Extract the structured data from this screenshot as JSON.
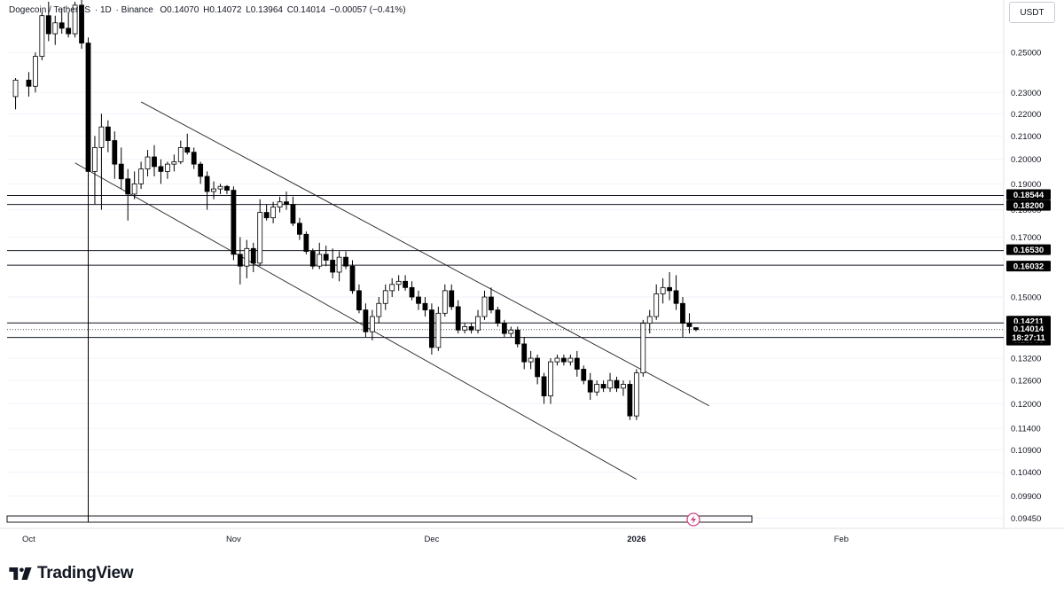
{
  "legend": {
    "symbol": "Dogecoin / TetherUS",
    "interval": "1D",
    "exchange": "Binance",
    "open": "O0.14070",
    "high": "H0.14072",
    "low": "L0.13964",
    "close": "C0.14014",
    "change": "−0.00057 (−0.41%)"
  },
  "currency": "USDT",
  "brand": "TradingView",
  "colors": {
    "up": "#ffffff",
    "down": "#000000",
    "line": "#131722",
    "grid": "#f0f3fa"
  },
  "chart_data": {
    "type": "candlestick",
    "x_ticks": [
      "Oct",
      "Nov",
      "Dec",
      "2026",
      "Feb"
    ],
    "y_ticks": [
      "0.25000",
      "0.23000",
      "0.22000",
      "0.21000",
      "0.20000",
      "0.19000",
      "0.18000",
      "0.17000",
      "0.15000",
      "0.13200",
      "0.12600",
      "0.12000",
      "0.11400",
      "0.10900",
      "0.10400",
      "0.09900",
      "0.09450"
    ],
    "scale": "log",
    "ylim": [
      0.0925,
      0.279
    ],
    "price_levels": [
      "0.18544",
      "0.18200",
      "0.16530",
      "0.16032",
      "0.14211",
      "0.13785"
    ],
    "last_price": "0.14014",
    "countdown": "18:27:11",
    "trend_channel": {
      "upper": [
        [
          "Oct 18",
          0.2255
        ],
        [
          "Jan 12",
          0.1195
        ]
      ],
      "lower": [
        [
          "Oct 8",
          0.1985
        ],
        [
          "Jan 1",
          0.1025
        ]
      ]
    },
    "candles": [
      {
        "date": "Sep 30",
        "o": 0.228,
        "h": 0.237,
        "l": 0.222,
        "c": 0.236
      },
      {
        "date": "Oct 1",
        "o": 0.236,
        "h": 0.24,
        "l": 0.228,
        "c": 0.233
      },
      {
        "date": "Oct 2",
        "o": 0.233,
        "h": 0.25,
        "l": 0.23,
        "c": 0.248
      },
      {
        "date": "Oct 3",
        "o": 0.248,
        "h": 0.272,
        "l": 0.246,
        "c": 0.27
      },
      {
        "date": "Oct 4",
        "o": 0.27,
        "h": 0.278,
        "l": 0.256,
        "c": 0.26
      },
      {
        "date": "Oct 5",
        "o": 0.26,
        "h": 0.27,
        "l": 0.254,
        "c": 0.266
      },
      {
        "date": "Oct 6",
        "o": 0.266,
        "h": 0.274,
        "l": 0.26,
        "c": 0.263
      },
      {
        "date": "Oct 7",
        "o": 0.263,
        "h": 0.272,
        "l": 0.258,
        "c": 0.26
      },
      {
        "date": "Oct 8",
        "o": 0.26,
        "h": 0.278,
        "l": 0.258,
        "c": 0.276
      },
      {
        "date": "Oct 9",
        "o": 0.276,
        "h": 0.279,
        "l": 0.252,
        "c": 0.255
      },
      {
        "date": "Oct 10",
        "o": 0.255,
        "h": 0.258,
        "l": 0.185,
        "c": 0.195
      },
      {
        "date": "Oct 11",
        "o": 0.195,
        "h": 0.21,
        "l": 0.182,
        "c": 0.205
      },
      {
        "date": "Oct 12",
        "o": 0.205,
        "h": 0.22,
        "l": 0.18,
        "c": 0.214
      },
      {
        "date": "Oct 13",
        "o": 0.214,
        "h": 0.217,
        "l": 0.203,
        "c": 0.208
      },
      {
        "date": "Oct 14",
        "o": 0.208,
        "h": 0.212,
        "l": 0.192,
        "c": 0.198
      },
      {
        "date": "Oct 15",
        "o": 0.198,
        "h": 0.205,
        "l": 0.188,
        "c": 0.192
      },
      {
        "date": "Oct 16",
        "o": 0.192,
        "h": 0.196,
        "l": 0.176,
        "c": 0.186
      },
      {
        "date": "Oct 17",
        "o": 0.186,
        "h": 0.195,
        "l": 0.184,
        "c": 0.19
      },
      {
        "date": "Oct 18",
        "o": 0.19,
        "h": 0.199,
        "l": 0.188,
        "c": 0.196
      },
      {
        "date": "Oct 19",
        "o": 0.196,
        "h": 0.204,
        "l": 0.193,
        "c": 0.201
      },
      {
        "date": "Oct 20",
        "o": 0.201,
        "h": 0.206,
        "l": 0.193,
        "c": 0.197
      },
      {
        "date": "Oct 21",
        "o": 0.197,
        "h": 0.2,
        "l": 0.19,
        "c": 0.195
      },
      {
        "date": "Oct 22",
        "o": 0.195,
        "h": 0.199,
        "l": 0.192,
        "c": 0.198
      },
      {
        "date": "Oct 23",
        "o": 0.198,
        "h": 0.202,
        "l": 0.195,
        "c": 0.199
      },
      {
        "date": "Oct 24",
        "o": 0.199,
        "h": 0.208,
        "l": 0.198,
        "c": 0.205
      },
      {
        "date": "Oct 25",
        "o": 0.205,
        "h": 0.211,
        "l": 0.202,
        "c": 0.203
      },
      {
        "date": "Oct 26",
        "o": 0.203,
        "h": 0.205,
        "l": 0.196,
        "c": 0.198
      },
      {
        "date": "Oct 27",
        "o": 0.198,
        "h": 0.199,
        "l": 0.19,
        "c": 0.193
      },
      {
        "date": "Oct 28",
        "o": 0.193,
        "h": 0.195,
        "l": 0.18,
        "c": 0.187
      },
      {
        "date": "Oct 29",
        "o": 0.187,
        "h": 0.191,
        "l": 0.184,
        "c": 0.188
      },
      {
        "date": "Oct 30",
        "o": 0.188,
        "h": 0.19,
        "l": 0.186,
        "c": 0.189
      },
      {
        "date": "Oct 31",
        "o": 0.189,
        "h": 0.1895,
        "l": 0.186,
        "c": 0.1875
      },
      {
        "date": "Nov 1",
        "o": 0.1875,
        "h": 0.189,
        "l": 0.162,
        "c": 0.164
      },
      {
        "date": "Nov 2",
        "o": 0.164,
        "h": 0.17,
        "l": 0.154,
        "c": 0.16
      },
      {
        "date": "Nov 3",
        "o": 0.16,
        "h": 0.169,
        "l": 0.156,
        "c": 0.166
      },
      {
        "date": "Nov 4",
        "o": 0.166,
        "h": 0.168,
        "l": 0.158,
        "c": 0.161
      },
      {
        "date": "Nov 5",
        "o": 0.161,
        "h": 0.184,
        "l": 0.16,
        "c": 0.179
      },
      {
        "date": "Nov 6",
        "o": 0.179,
        "h": 0.182,
        "l": 0.176,
        "c": 0.177
      },
      {
        "date": "Nov 7",
        "o": 0.177,
        "h": 0.183,
        "l": 0.175,
        "c": 0.181
      },
      {
        "date": "Nov 8",
        "o": 0.181,
        "h": 0.185,
        "l": 0.179,
        "c": 0.183
      },
      {
        "date": "Nov 9",
        "o": 0.183,
        "h": 0.187,
        "l": 0.18,
        "c": 0.182
      },
      {
        "date": "Nov 10",
        "o": 0.182,
        "h": 0.185,
        "l": 0.174,
        "c": 0.175
      },
      {
        "date": "Nov 11",
        "o": 0.175,
        "h": 0.177,
        "l": 0.169,
        "c": 0.171
      },
      {
        "date": "Nov 12",
        "o": 0.171,
        "h": 0.172,
        "l": 0.164,
        "c": 0.165
      },
      {
        "date": "Nov 13",
        "o": 0.165,
        "h": 0.166,
        "l": 0.159,
        "c": 0.16
      },
      {
        "date": "Nov 14",
        "o": 0.16,
        "h": 0.168,
        "l": 0.159,
        "c": 0.164
      },
      {
        "date": "Nov 15",
        "o": 0.164,
        "h": 0.167,
        "l": 0.16,
        "c": 0.162
      },
      {
        "date": "Nov 16",
        "o": 0.162,
        "h": 0.166,
        "l": 0.156,
        "c": 0.158
      },
      {
        "date": "Nov 17",
        "o": 0.158,
        "h": 0.165,
        "l": 0.155,
        "c": 0.163
      },
      {
        "date": "Nov 18",
        "o": 0.163,
        "h": 0.165,
        "l": 0.159,
        "c": 0.16
      },
      {
        "date": "Nov 19",
        "o": 0.16,
        "h": 0.162,
        "l": 0.151,
        "c": 0.152
      },
      {
        "date": "Nov 20",
        "o": 0.152,
        "h": 0.154,
        "l": 0.145,
        "c": 0.146
      },
      {
        "date": "Nov 21",
        "o": 0.146,
        "h": 0.148,
        "l": 0.138,
        "c": 0.1395
      },
      {
        "date": "Nov 22",
        "o": 0.1395,
        "h": 0.146,
        "l": 0.137,
        "c": 0.144
      },
      {
        "date": "Nov 23",
        "o": 0.144,
        "h": 0.15,
        "l": 0.142,
        "c": 0.148
      },
      {
        "date": "Nov 24",
        "o": 0.148,
        "h": 0.154,
        "l": 0.146,
        "c": 0.152
      },
      {
        "date": "Nov 25",
        "o": 0.152,
        "h": 0.156,
        "l": 0.15,
        "c": 0.154
      },
      {
        "date": "Nov 26",
        "o": 0.154,
        "h": 0.157,
        "l": 0.152,
        "c": 0.155
      },
      {
        "date": "Nov 27",
        "o": 0.155,
        "h": 0.157,
        "l": 0.152,
        "c": 0.153
      },
      {
        "date": "Nov 28",
        "o": 0.153,
        "h": 0.155,
        "l": 0.149,
        "c": 0.15
      },
      {
        "date": "Nov 29",
        "o": 0.15,
        "h": 0.152,
        "l": 0.146,
        "c": 0.148
      },
      {
        "date": "Nov 30",
        "o": 0.148,
        "h": 0.15,
        "l": 0.144,
        "c": 0.146
      },
      {
        "date": "Dec 1",
        "o": 0.146,
        "h": 0.148,
        "l": 0.133,
        "c": 0.135
      },
      {
        "date": "Dec 2",
        "o": 0.135,
        "h": 0.147,
        "l": 0.134,
        "c": 0.145
      },
      {
        "date": "Dec 3",
        "o": 0.145,
        "h": 0.154,
        "l": 0.144,
        "c": 0.152
      },
      {
        "date": "Dec 4",
        "o": 0.152,
        "h": 0.154,
        "l": 0.146,
        "c": 0.147
      },
      {
        "date": "Dec 5",
        "o": 0.147,
        "h": 0.149,
        "l": 0.139,
        "c": 0.14
      },
      {
        "date": "Dec 6",
        "o": 0.14,
        "h": 0.142,
        "l": 0.139,
        "c": 0.141
      },
      {
        "date": "Dec 7",
        "o": 0.141,
        "h": 0.142,
        "l": 0.139,
        "c": 0.14
      },
      {
        "date": "Dec 8",
        "o": 0.14,
        "h": 0.146,
        "l": 0.139,
        "c": 0.144
      },
      {
        "date": "Dec 9",
        "o": 0.144,
        "h": 0.152,
        "l": 0.143,
        "c": 0.15
      },
      {
        "date": "Dec 10",
        "o": 0.15,
        "h": 0.153,
        "l": 0.145,
        "c": 0.146
      },
      {
        "date": "Dec 11",
        "o": 0.146,
        "h": 0.147,
        "l": 0.141,
        "c": 0.142
      },
      {
        "date": "Dec 12",
        "o": 0.142,
        "h": 0.143,
        "l": 0.138,
        "c": 0.139
      },
      {
        "date": "Dec 13",
        "o": 0.139,
        "h": 0.141,
        "l": 0.138,
        "c": 0.14
      },
      {
        "date": "Dec 14",
        "o": 0.14,
        "h": 0.141,
        "l": 0.135,
        "c": 0.136
      },
      {
        "date": "Dec 15",
        "o": 0.136,
        "h": 0.138,
        "l": 0.129,
        "c": 0.131
      },
      {
        "date": "Dec 16",
        "o": 0.131,
        "h": 0.134,
        "l": 0.129,
        "c": 0.132
      },
      {
        "date": "Dec 17",
        "o": 0.132,
        "h": 0.133,
        "l": 0.125,
        "c": 0.127
      },
      {
        "date": "Dec 18",
        "o": 0.127,
        "h": 0.128,
        "l": 0.12,
        "c": 0.122
      },
      {
        "date": "Dec 19",
        "o": 0.122,
        "h": 0.132,
        "l": 0.12,
        "c": 0.131
      },
      {
        "date": "Dec 20",
        "o": 0.131,
        "h": 0.133,
        "l": 0.13,
        "c": 0.132
      },
      {
        "date": "Dec 21",
        "o": 0.132,
        "h": 0.133,
        "l": 0.13,
        "c": 0.131
      },
      {
        "date": "Dec 22",
        "o": 0.131,
        "h": 0.133,
        "l": 0.13,
        "c": 0.132
      },
      {
        "date": "Dec 23",
        "o": 0.132,
        "h": 0.134,
        "l": 0.127,
        "c": 0.129
      },
      {
        "date": "Dec 24",
        "o": 0.129,
        "h": 0.13,
        "l": 0.125,
        "c": 0.126
      },
      {
        "date": "Dec 25",
        "o": 0.126,
        "h": 0.128,
        "l": 0.121,
        "c": 0.123
      },
      {
        "date": "Dec 26",
        "o": 0.123,
        "h": 0.126,
        "l": 0.122,
        "c": 0.125
      },
      {
        "date": "Dec 27",
        "o": 0.125,
        "h": 0.126,
        "l": 0.123,
        "c": 0.124
      },
      {
        "date": "Dec 28",
        "o": 0.124,
        "h": 0.128,
        "l": 0.123,
        "c": 0.126
      },
      {
        "date": "Dec 29",
        "o": 0.126,
        "h": 0.127,
        "l": 0.123,
        "c": 0.124
      },
      {
        "date": "Dec 30",
        "o": 0.124,
        "h": 0.126,
        "l": 0.122,
        "c": 0.125
      },
      {
        "date": "Dec 31",
        "o": 0.125,
        "h": 0.126,
        "l": 0.116,
        "c": 0.117
      },
      {
        "date": "Jan 1",
        "o": 0.117,
        "h": 0.129,
        "l": 0.116,
        "c": 0.128
      },
      {
        "date": "Jan 2",
        "o": 0.128,
        "h": 0.143,
        "l": 0.127,
        "c": 0.142
      },
      {
        "date": "Jan 3",
        "o": 0.142,
        "h": 0.146,
        "l": 0.139,
        "c": 0.144
      },
      {
        "date": "Jan 4",
        "o": 0.144,
        "h": 0.154,
        "l": 0.143,
        "c": 0.151
      },
      {
        "date": "Jan 5",
        "o": 0.151,
        "h": 0.156,
        "l": 0.148,
        "c": 0.153
      },
      {
        "date": "Jan 6",
        "o": 0.153,
        "h": 0.158,
        "l": 0.149,
        "c": 0.152
      },
      {
        "date": "Jan 7",
        "o": 0.152,
        "h": 0.157,
        "l": 0.146,
        "c": 0.148
      },
      {
        "date": "Jan 8",
        "o": 0.148,
        "h": 0.15,
        "l": 0.138,
        "c": 0.142
      },
      {
        "date": "Jan 9",
        "o": 0.142,
        "h": 0.145,
        "l": 0.139,
        "c": 0.141
      },
      {
        "date": "Jan 10",
        "o": 0.1407,
        "h": 0.14072,
        "l": 0.13964,
        "c": 0.14014
      }
    ]
  }
}
